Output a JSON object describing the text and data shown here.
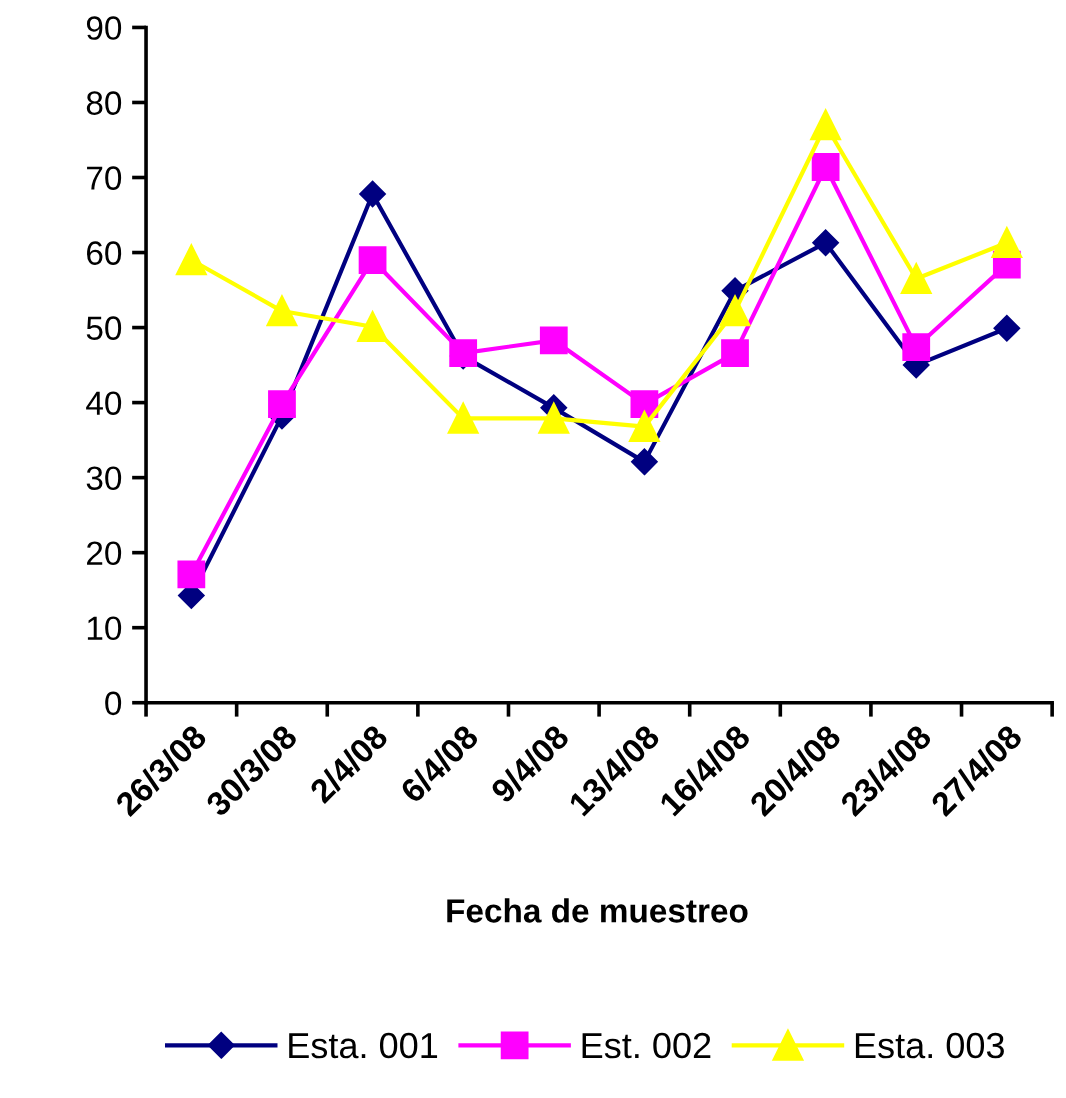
{
  "chart_data": {
    "type": "line",
    "xlabel": "Fecha de muestreo",
    "categories": [
      "26/3/08",
      "30/3/08",
      "2/4/08",
      "6/4/08",
      "9/4/08",
      "13/4/08",
      "16/4/08",
      "20/4/08",
      "23/4/08",
      "27/4/08"
    ],
    "series": [
      {
        "name": "Esta. 001",
        "color": "#000080",
        "marker": "diamond",
        "values": [
          14.3,
          38.2,
          67.8,
          46.2,
          39.3,
          32.1,
          54.9,
          61.3,
          45,
          49.9
        ]
      },
      {
        "name": "Est. 002",
        "color": "#ff00ff",
        "marker": "square",
        "values": [
          17.1,
          39.8,
          59,
          46.6,
          48.3,
          39.8,
          46.6,
          71.4,
          47.4,
          58.4
        ]
      },
      {
        "name": "Esta. 003",
        "color": "#ffff00",
        "marker": "triangle",
        "values": [
          59,
          52.2,
          50.1,
          37.9,
          37.9,
          36.8,
          52.2,
          77,
          56.5,
          61.3
        ]
      }
    ],
    "ylim": [
      0,
      90
    ],
    "yticks": [
      0,
      10,
      20,
      30,
      40,
      50,
      60,
      70,
      80,
      90
    ],
    "grid": false,
    "legend": "bottom",
    "line_style": "solid"
  }
}
